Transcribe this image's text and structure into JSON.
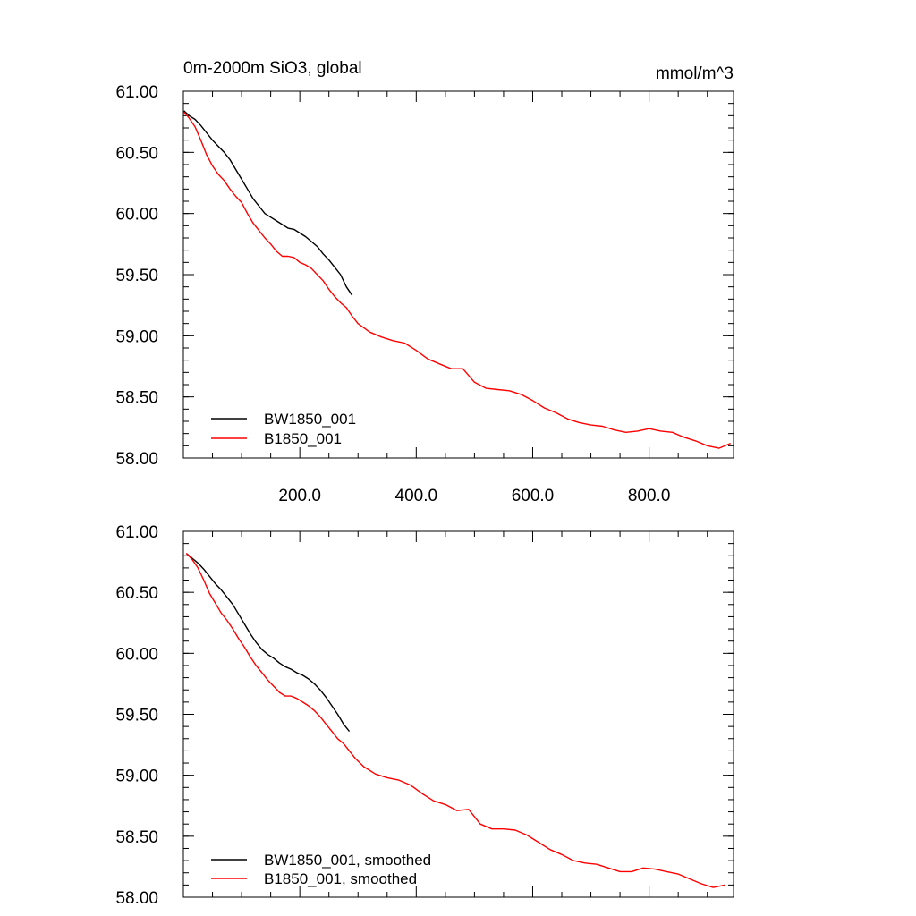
{
  "chart_data": [
    {
      "type": "line",
      "title": "0m-2000m SiO3, global",
      "units": "mmol/m^3",
      "xlabel": "",
      "ylabel": "",
      "xlim": [
        0,
        945
      ],
      "ylim": [
        58.0,
        61.0
      ],
      "xticks": [
        200,
        400,
        600,
        800
      ],
      "xtick_labels": [
        "200.0",
        "400.0",
        "600.0",
        "800.0"
      ],
      "yticks": [
        58.0,
        58.5,
        59.0,
        59.5,
        60.0,
        60.5,
        61.0
      ],
      "ytick_labels": [
        "58.00",
        "58.50",
        "59.00",
        "59.50",
        "60.00",
        "60.50",
        "61.00"
      ],
      "legend_position": "bottom-left",
      "grid": false,
      "series": [
        {
          "name": "BW1850_001",
          "color": "#000000",
          "x": [
            1,
            10,
            20,
            30,
            40,
            50,
            60,
            70,
            80,
            90,
            100,
            110,
            120,
            130,
            140,
            150,
            160,
            170,
            180,
            190,
            200,
            210,
            220,
            230,
            240,
            250,
            260,
            270,
            280,
            290
          ],
          "y": [
            60.84,
            60.8,
            60.77,
            60.72,
            60.66,
            60.6,
            60.55,
            60.5,
            60.44,
            60.36,
            60.28,
            60.2,
            60.12,
            60.06,
            60.0,
            59.97,
            59.94,
            59.91,
            59.88,
            59.87,
            59.84,
            59.81,
            59.77,
            59.73,
            59.67,
            59.62,
            59.56,
            59.5,
            59.4,
            59.33
          ]
        },
        {
          "name": "B1850_001",
          "color": "#ff0000",
          "x": [
            1,
            10,
            20,
            30,
            40,
            50,
            60,
            70,
            80,
            90,
            100,
            110,
            120,
            130,
            140,
            150,
            160,
            170,
            180,
            190,
            200,
            210,
            220,
            230,
            240,
            250,
            260,
            270,
            280,
            290,
            300,
            320,
            340,
            360,
            380,
            400,
            420,
            440,
            460,
            480,
            500,
            520,
            540,
            560,
            580,
            600,
            620,
            640,
            660,
            680,
            700,
            720,
            740,
            760,
            780,
            800,
            820,
            840,
            860,
            880,
            900,
            920,
            940
          ],
          "y": [
            60.83,
            60.78,
            60.71,
            60.6,
            60.48,
            60.39,
            60.32,
            60.27,
            60.2,
            60.14,
            60.09,
            60.0,
            59.92,
            59.86,
            59.8,
            59.75,
            59.69,
            59.65,
            59.65,
            59.64,
            59.6,
            59.58,
            59.55,
            59.5,
            59.45,
            59.38,
            59.32,
            59.27,
            59.23,
            59.16,
            59.1,
            59.03,
            58.99,
            58.96,
            58.94,
            58.88,
            58.81,
            58.77,
            58.73,
            58.73,
            58.62,
            58.57,
            58.56,
            58.55,
            58.52,
            58.47,
            58.41,
            58.37,
            58.32,
            58.29,
            58.27,
            58.26,
            58.23,
            58.21,
            58.22,
            58.24,
            58.22,
            58.21,
            58.17,
            58.14,
            58.1,
            58.08,
            58.12
          ]
        }
      ]
    },
    {
      "type": "line",
      "title": "",
      "xlabel": "",
      "ylabel": "",
      "xlim": [
        0,
        945
      ],
      "ylim": [
        58.0,
        61.0
      ],
      "xticks": [
        200,
        400,
        600,
        800
      ],
      "yticks": [
        58.0,
        58.5,
        59.0,
        59.5,
        60.0,
        60.5,
        61.0
      ],
      "ytick_labels": [
        "58.00",
        "58.50",
        "59.00",
        "59.50",
        "60.00",
        "60.50",
        "61.00"
      ],
      "legend_position": "bottom-left",
      "grid": false,
      "series": [
        {
          "name": "BW1850_001, smoothed",
          "color": "#000000",
          "x": [
            5,
            15,
            25,
            35,
            45,
            55,
            65,
            75,
            85,
            95,
            105,
            115,
            125,
            135,
            145,
            155,
            165,
            175,
            185,
            195,
            205,
            215,
            225,
            235,
            245,
            255,
            265,
            275,
            285
          ],
          "y": [
            60.82,
            60.78,
            60.74,
            60.69,
            60.63,
            60.57,
            60.52,
            60.46,
            60.4,
            60.32,
            60.24,
            60.16,
            60.09,
            60.03,
            59.99,
            59.96,
            59.92,
            59.89,
            59.87,
            59.84,
            59.82,
            59.79,
            59.75,
            59.7,
            59.64,
            59.57,
            59.5,
            59.42,
            59.36
          ]
        },
        {
          "name": "B1850_001, smoothed",
          "color": "#ff0000",
          "x": [
            5,
            15,
            25,
            35,
            45,
            55,
            65,
            75,
            85,
            95,
            105,
            115,
            125,
            135,
            145,
            155,
            165,
            175,
            185,
            195,
            205,
            215,
            225,
            235,
            245,
            255,
            265,
            275,
            285,
            295,
            310,
            330,
            350,
            370,
            390,
            410,
            430,
            450,
            470,
            490,
            510,
            530,
            550,
            570,
            590,
            610,
            630,
            650,
            670,
            690,
            710,
            730,
            750,
            770,
            790,
            810,
            830,
            850,
            870,
            890,
            910,
            930
          ],
          "y": [
            60.82,
            60.77,
            60.7,
            60.6,
            60.49,
            60.41,
            60.33,
            60.27,
            60.2,
            60.12,
            60.05,
            59.97,
            59.9,
            59.84,
            59.78,
            59.73,
            59.68,
            59.65,
            59.65,
            59.63,
            59.6,
            59.57,
            59.53,
            59.48,
            59.42,
            59.36,
            59.3,
            59.26,
            59.2,
            59.14,
            59.07,
            59.01,
            58.98,
            58.96,
            58.92,
            58.85,
            58.79,
            58.76,
            58.71,
            58.72,
            58.6,
            58.56,
            58.56,
            58.55,
            58.51,
            58.45,
            58.39,
            58.35,
            58.3,
            58.28,
            58.27,
            58.24,
            58.21,
            58.21,
            58.24,
            58.23,
            58.21,
            58.19,
            58.15,
            58.11,
            58.08,
            58.1
          ]
        }
      ]
    }
  ]
}
